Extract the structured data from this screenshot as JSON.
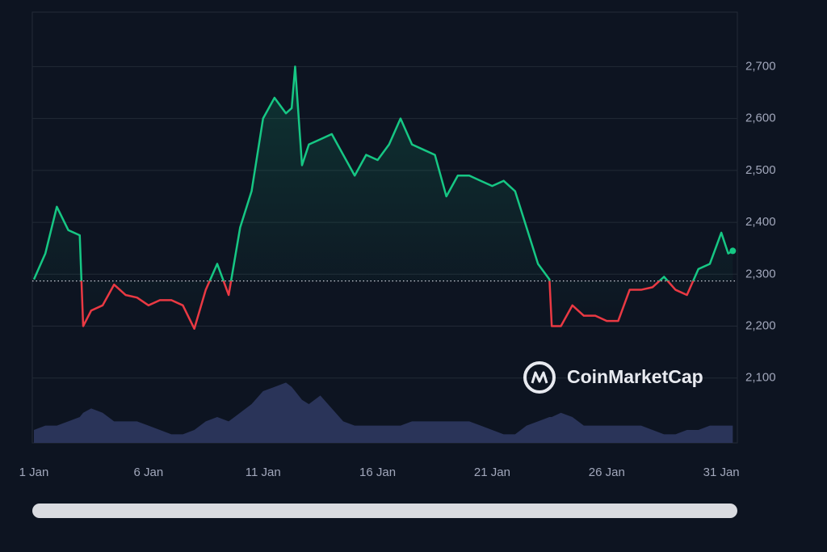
{
  "chart_data": {
    "type": "line",
    "watermark": "CoinMarketCap",
    "baseline": 2287,
    "x": [
      1,
      1.5,
      2,
      2.5,
      3,
      3.15,
      3.5,
      4,
      4.5,
      5,
      5.5,
      6,
      6.5,
      7,
      7.5,
      8,
      8.5,
      9,
      9.5,
      10,
      10.5,
      11,
      11.5,
      12,
      12.25,
      12.4,
      12.7,
      13,
      13.5,
      14,
      14.5,
      15,
      15.5,
      16,
      16.5,
      17,
      17.5,
      18,
      18.5,
      19,
      19.5,
      20,
      20.5,
      21,
      21.5,
      22,
      22.5,
      23,
      23.5,
      23.6,
      24,
      24.5,
      25,
      25.5,
      26,
      26.5,
      27,
      27.5,
      28,
      28.5,
      29,
      29.5,
      30,
      30.5,
      31,
      31.3,
      31.5
    ],
    "series": [
      {
        "color": "#16c784",
        "below_color": "#ea3943",
        "values": [
          2290,
          2340,
          2430,
          2385,
          2375,
          2200,
          2230,
          2240,
          2280,
          2260,
          2255,
          2240,
          2250,
          2250,
          2240,
          2195,
          2270,
          2320,
          2260,
          2390,
          2460,
          2600,
          2640,
          2610,
          2620,
          2700,
          2510,
          2550,
          2560,
          2570,
          2530,
          2490,
          2530,
          2520,
          2550,
          2600,
          2550,
          2540,
          2530,
          2450,
          2490,
          2490,
          2480,
          2470,
          2480,
          2460,
          2390,
          2320,
          2290,
          2200,
          2200,
          2240,
          2220,
          2220,
          2210,
          2210,
          2270,
          2270,
          2275,
          2295,
          2270,
          2260,
          2310,
          2320,
          2380,
          2340,
          2345
        ]
      },
      {
        "color": "#2a3459",
        "axis": "y2",
        "values": [
          3,
          4,
          4,
          5,
          6,
          7,
          8,
          7,
          5,
          5,
          5,
          4,
          3,
          2,
          2,
          3,
          5,
          6,
          5,
          7,
          9,
          12,
          13,
          14,
          13,
          12,
          10,
          9,
          11,
          8,
          5,
          4,
          4,
          4,
          4,
          4,
          5,
          5,
          5,
          5,
          5,
          5,
          4,
          3,
          2,
          2,
          4,
          5,
          6,
          6,
          7,
          6,
          4,
          4,
          4,
          4,
          4,
          4,
          3,
          2,
          2,
          3,
          3,
          4,
          4,
          4,
          4
        ]
      }
    ],
    "xlim": [
      0.93,
      31.7
    ],
    "xticks": [
      {
        "value": 1,
        "label": "1 Jan"
      },
      {
        "value": 6,
        "label": "6 Jan"
      },
      {
        "value": 11,
        "label": "11 Jan"
      },
      {
        "value": 16,
        "label": "16 Jan"
      },
      {
        "value": 21,
        "label": "21 Jan"
      },
      {
        "value": 26,
        "label": "26 Jan"
      },
      {
        "value": 31,
        "label": "31 Jan"
      }
    ],
    "ylim": [
      1975,
      2805
    ],
    "yticks": [
      {
        "value": 2100,
        "label": "2,100"
      },
      {
        "value": 2200,
        "label": "2,200"
      },
      {
        "value": 2300,
        "label": "2,300"
      },
      {
        "value": 2400,
        "label": "2,400"
      },
      {
        "value": 2500,
        "label": "2,500"
      },
      {
        "value": 2600,
        "label": "2,600"
      },
      {
        "value": 2700,
        "label": "2,700"
      }
    ],
    "y2lim": [
      0,
      100
    ],
    "grid": true
  }
}
